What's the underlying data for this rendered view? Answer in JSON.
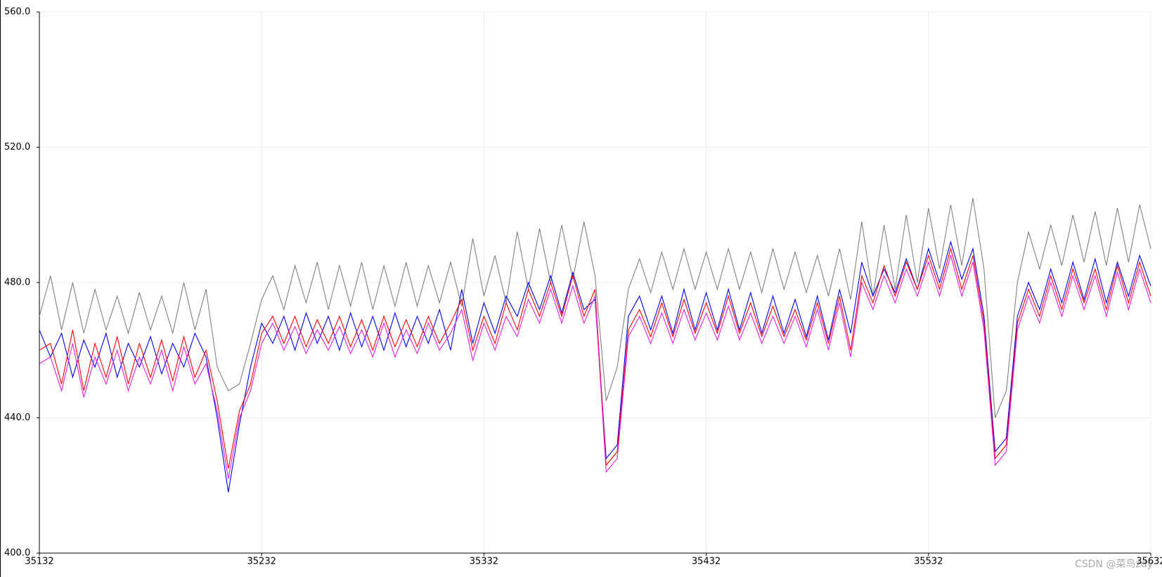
{
  "chart_data": {
    "type": "line",
    "x": [
      35132,
      35137,
      35142,
      35147,
      35152,
      35157,
      35162,
      35167,
      35172,
      35177,
      35182,
      35187,
      35192,
      35197,
      35202,
      35207,
      35212,
      35217,
      35222,
      35227,
      35232,
      35237,
      35242,
      35247,
      35252,
      35257,
      35262,
      35267,
      35272,
      35277,
      35282,
      35287,
      35292,
      35297,
      35302,
      35307,
      35312,
      35317,
      35322,
      35327,
      35332,
      35337,
      35342,
      35347,
      35352,
      35357,
      35362,
      35367,
      35372,
      35377,
      35382,
      35387,
      35392,
      35397,
      35402,
      35407,
      35412,
      35417,
      35422,
      35427,
      35432,
      35437,
      35442,
      35447,
      35452,
      35457,
      35462,
      35467,
      35472,
      35477,
      35482,
      35487,
      35492,
      35497,
      35502,
      35507,
      35512,
      35517,
      35522,
      35527,
      35532,
      35537,
      35542,
      35547,
      35552,
      35557,
      35562,
      35567,
      35572,
      35577,
      35582,
      35587,
      35592,
      35597,
      35602,
      35607,
      35612,
      35617,
      35622,
      35627,
      35632
    ],
    "series": [
      {
        "color": "#808080",
        "values": [
          470,
          482,
          466,
          480,
          465,
          478,
          466,
          476,
          465,
          477,
          466,
          476,
          465,
          480,
          466,
          478,
          455,
          448,
          450,
          462,
          475,
          482,
          472,
          485,
          474,
          486,
          472,
          485,
          473,
          486,
          472,
          485,
          473,
          486,
          473,
          485,
          474,
          486,
          473,
          493,
          476,
          488,
          474,
          495,
          478,
          496,
          480,
          497,
          481,
          498,
          482,
          445,
          455,
          478,
          487,
          477,
          489,
          478,
          490,
          478,
          489,
          478,
          490,
          478,
          489,
          477,
          490,
          478,
          489,
          477,
          488,
          476,
          490,
          475,
          498,
          476,
          497,
          478,
          500,
          480,
          502,
          484,
          503,
          485,
          505,
          484,
          440,
          448,
          480,
          495,
          484,
          497,
          485,
          500,
          486,
          501,
          485,
          502,
          486,
          503,
          490
        ]
      },
      {
        "color": "#0000ff",
        "values": [
          466,
          458,
          465,
          452,
          463,
          455,
          465,
          452,
          462,
          455,
          464,
          453,
          462,
          455,
          465,
          458,
          440,
          418,
          438,
          455,
          468,
          462,
          470,
          460,
          471,
          462,
          470,
          460,
          471,
          461,
          470,
          460,
          471,
          461,
          470,
          462,
          472,
          460,
          478,
          462,
          474,
          465,
          476,
          470,
          480,
          472,
          482,
          471,
          483,
          472,
          475,
          428,
          432,
          470,
          476,
          466,
          476,
          465,
          478,
          466,
          477,
          466,
          478,
          466,
          477,
          465,
          476,
          465,
          475,
          464,
          476,
          463,
          478,
          465,
          486,
          476,
          484,
          477,
          487,
          478,
          490,
          480,
          492,
          481,
          490,
          470,
          430,
          434,
          470,
          480,
          472,
          484,
          474,
          486,
          475,
          487,
          474,
          486,
          476,
          488,
          479
        ]
      },
      {
        "color": "#ff0000",
        "values": [
          460,
          462,
          450,
          466,
          448,
          462,
          452,
          464,
          450,
          462,
          452,
          463,
          451,
          464,
          452,
          460,
          445,
          425,
          442,
          450,
          465,
          470,
          462,
          470,
          461,
          469,
          462,
          470,
          461,
          469,
          460,
          470,
          461,
          469,
          461,
          470,
          462,
          468,
          475,
          460,
          470,
          462,
          474,
          466,
          478,
          470,
          480,
          470,
          482,
          470,
          478,
          426,
          430,
          466,
          472,
          464,
          474,
          464,
          475,
          465,
          474,
          465,
          476,
          465,
          474,
          464,
          473,
          464,
          472,
          463,
          474,
          462,
          476,
          460,
          482,
          474,
          485,
          476,
          486,
          478,
          488,
          478,
          490,
          478,
          488,
          468,
          428,
          432,
          468,
          478,
          470,
          482,
          472,
          484,
          474,
          484,
          472,
          485,
          474,
          486,
          476
        ]
      },
      {
        "color": "#e020e0",
        "values": [
          456,
          458,
          448,
          462,
          446,
          458,
          450,
          460,
          448,
          458,
          450,
          460,
          448,
          461,
          450,
          456,
          442,
          422,
          440,
          448,
          462,
          468,
          460,
          467,
          459,
          466,
          460,
          467,
          459,
          466,
          458,
          468,
          458,
          466,
          459,
          468,
          460,
          465,
          472,
          457,
          468,
          460,
          470,
          464,
          475,
          468,
          478,
          468,
          479,
          468,
          476,
          424,
          428,
          464,
          470,
          462,
          471,
          462,
          472,
          463,
          471,
          463,
          473,
          463,
          471,
          462,
          470,
          462,
          470,
          461,
          472,
          460,
          474,
          458,
          480,
          472,
          482,
          474,
          484,
          476,
          486,
          476,
          488,
          476,
          486,
          466,
          426,
          430,
          466,
          476,
          468,
          480,
          470,
          482,
          472,
          482,
          470,
          483,
          472,
          484,
          474
        ]
      }
    ],
    "xlim": [
      35132,
      35632
    ],
    "xticks": [
      35132,
      35232,
      35332,
      35432,
      35532,
      35632
    ],
    "ylim": [
      400,
      560
    ],
    "yticks": [
      {
        "value": 400,
        "label": "400.0"
      },
      {
        "value": 440,
        "label": "440.0"
      },
      {
        "value": 480,
        "label": "480.0"
      },
      {
        "value": 520,
        "label": "520.0"
      },
      {
        "value": 560,
        "label": "560.0"
      }
    ],
    "grid": true
  },
  "watermark": "CSDN @菜鸟zdy"
}
